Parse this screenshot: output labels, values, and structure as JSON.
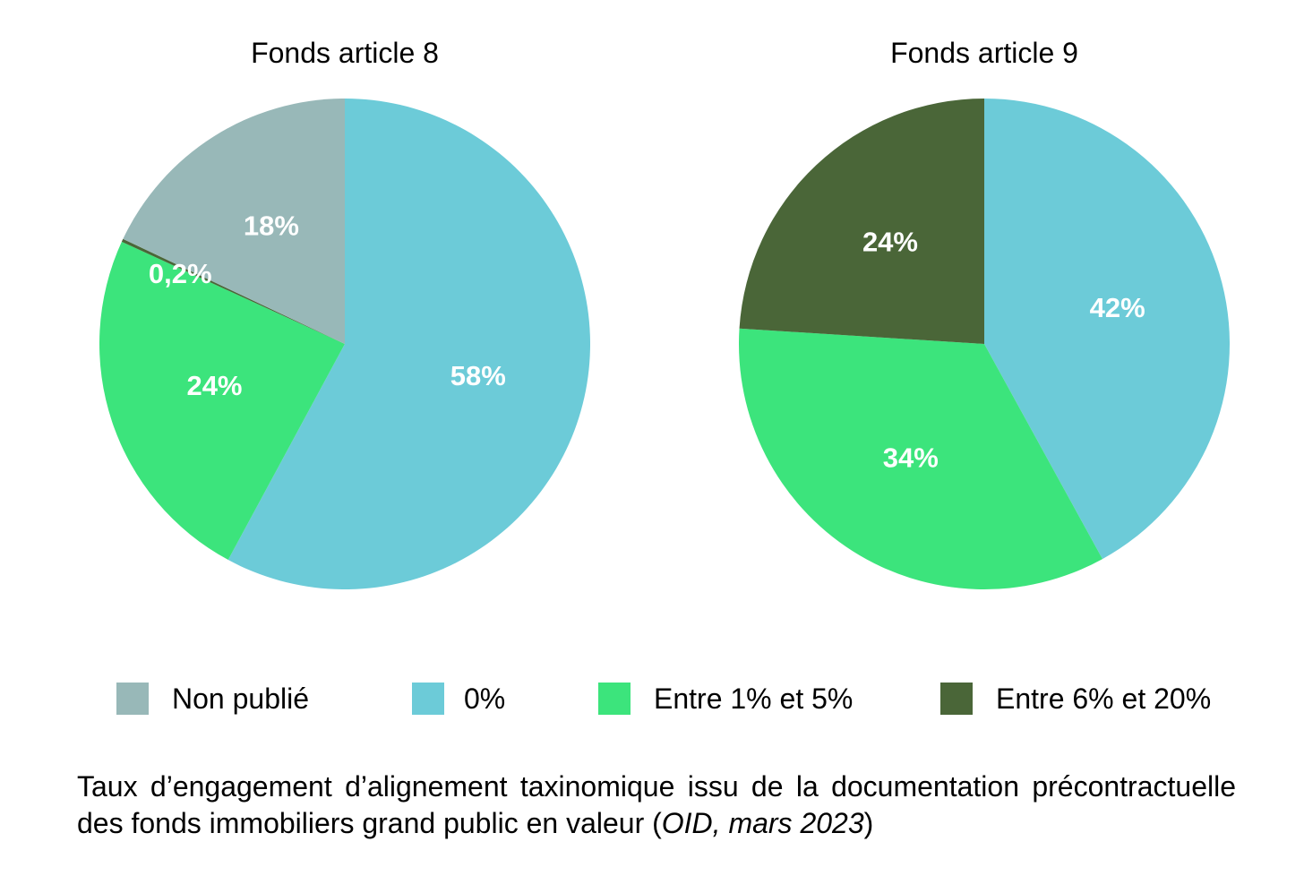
{
  "chart_data": [
    {
      "type": "pie",
      "title": "Fonds article 8",
      "slices": [
        {
          "name": "0%",
          "value": 58,
          "label": "58%",
          "color": "#6ccbd8"
        },
        {
          "name": "Entre 1% et 5%",
          "value": 24,
          "label": "24%",
          "color": "#3ce47c"
        },
        {
          "name": "Entre 6% et 20%",
          "value": 0.2,
          "label": "0,2%",
          "color": "#4a6638"
        },
        {
          "name": "Non publié",
          "value": 18,
          "label": "18%",
          "color": "#98b8b8"
        }
      ]
    },
    {
      "type": "pie",
      "title": "Fonds article 9",
      "slices": [
        {
          "name": "0%",
          "value": 42,
          "label": "42%",
          "color": "#6ccbd8"
        },
        {
          "name": "Entre 1% et 5%",
          "value": 34,
          "label": "34%",
          "color": "#3ce47c"
        },
        {
          "name": "Entre 6% et 20%",
          "value": 24,
          "label": "24%",
          "color": "#4a6638"
        }
      ]
    }
  ],
  "legend": {
    "placement": "bottom",
    "items": [
      {
        "label": "Non publié",
        "color": "#98b8b8"
      },
      {
        "label": "0%",
        "color": "#6ccbd8"
      },
      {
        "label": "Entre 1% et 5%",
        "color": "#3ce47c"
      },
      {
        "label": "Entre 6% et 20%",
        "color": "#4a6638"
      }
    ]
  },
  "caption": {
    "text": "Taux d’engagement d’alignement taxinomique issu de la documentation précontractuelle des fonds immobiliers grand public en valeur (",
    "source_italic": "OID, mars 2023",
    "close": ")"
  }
}
